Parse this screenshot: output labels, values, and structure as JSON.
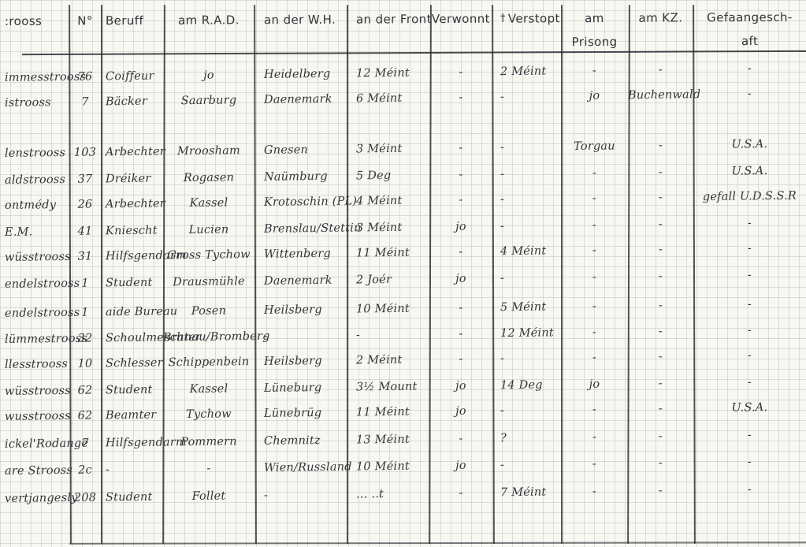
{
  "page": {
    "paper_color": "#f8f7f2",
    "grid_color": "#96a096",
    "ink_color": "#34353a",
    "rule_color": "#2a2c32"
  },
  "table": {
    "headers": [
      {
        "id": "strooss",
        "label": ":rooss"
      },
      {
        "id": "number",
        "label": "N°"
      },
      {
        "id": "beruf",
        "label": "Beruff"
      },
      {
        "id": "rad",
        "label": "am R.A.D."
      },
      {
        "id": "wh",
        "label": "an der W.H."
      },
      {
        "id": "front",
        "label": "an der Front"
      },
      {
        "id": "verwonnt",
        "label": "Verwonnt"
      },
      {
        "id": "verstopt",
        "label": "Verstopt",
        "prefix_mark": "†"
      },
      {
        "id": "prisong",
        "label": "am Prisong"
      },
      {
        "id": "kz",
        "label": "am KZ."
      },
      {
        "id": "gefaangeschaft",
        "label": "Gefaangesch-\naft"
      }
    ],
    "rows": [
      [
        "immesstrooss",
        "76",
        "Coiffeur",
        "jo",
        "Heidelberg",
        "12 Méint",
        "-",
        "2 Méint",
        "-",
        "-",
        "-"
      ],
      [
        "istrooss",
        "7",
        "Bäcker",
        "Saarburg",
        "Daenemark",
        "6 Méint",
        "-",
        "-",
        "jo",
        "Buchenwald",
        "-"
      ],
      [
        "lenstrooss",
        "103",
        "Arbechter",
        "Mroosham",
        "Gnesen",
        "3 Méint",
        "-",
        "-",
        "Torgau",
        "-",
        "U.S.A."
      ],
      [
        "aldstrooss",
        "37",
        "Dréiker",
        "Rogasen",
        "Naümburg",
        "5 Deg",
        "-",
        "-",
        "-",
        "-",
        "U.S.A."
      ],
      [
        "ontmédy",
        "26",
        "Arbechter",
        "Kassel",
        "Krotoschin (PL)",
        "4 Méint",
        "-",
        "-",
        "-",
        "-",
        "gefall U.D.S.S.R"
      ],
      [
        "E.M.",
        "41",
        "Kniescht",
        "Lucien",
        "Brenslau/Stettin",
        "3 Méint",
        "jo",
        "-",
        "-",
        "-",
        "-"
      ],
      [
        "wüsstrooss",
        "31",
        "Hilfsgendarm",
        "Gross Tychow",
        "Wittenberg",
        "11 Méint",
        "-",
        "4 Méint",
        "-",
        "-",
        "-"
      ],
      [
        "endelstrooss",
        "1",
        "Student",
        "Drausmühle",
        "Daenemark",
        "2 Joér",
        "jo",
        "-",
        "-",
        "-",
        "-"
      ],
      [
        "endelstrooss",
        "1",
        "aide Bureau",
        "Posen",
        "Heilsberg",
        "10 Méint",
        "-",
        "5 Méint",
        "-",
        "-",
        "-"
      ],
      [
        "lümmestrooss",
        "32",
        "Schoulmeschter",
        "Branau/Bromberg",
        "-",
        "-",
        "-",
        "12 Méint",
        "-",
        "-",
        "-"
      ],
      [
        "llesstrooss",
        "10",
        "Schlesser",
        "Schippenbein",
        "Heilsberg",
        "2 Méint",
        "-",
        "-",
        "-",
        "-",
        "-"
      ],
      [
        "wüsstrooss",
        "62",
        "Student",
        "Kassel",
        "Lüneburg",
        "3½ Mount",
        "jo",
        "14 Deg",
        "jo",
        "-",
        "-"
      ],
      [
        "wusstrooss",
        "62",
        "Beamter",
        "Tychow",
        "Lünebrüg",
        "11 Méint",
        "jo",
        "-",
        "-",
        "-",
        "U.S.A."
      ],
      [
        "ickel'Rodange",
        "7",
        "Hilfsgendarm",
        "Pommern",
        "Chemnitz",
        "13 Méint",
        "-",
        "?",
        "-",
        "-",
        "-"
      ],
      [
        "are Strooss",
        "2c",
        "-",
        "-",
        "Wien/Russland",
        "10 Méint",
        "jo",
        "-",
        "-",
        "-",
        "-"
      ],
      [
        "vertjangesly",
        "208",
        "Student",
        "Follet",
        "-",
        "… ..t",
        "-",
        "7 Méint",
        "-",
        "-",
        "-"
      ]
    ]
  }
}
